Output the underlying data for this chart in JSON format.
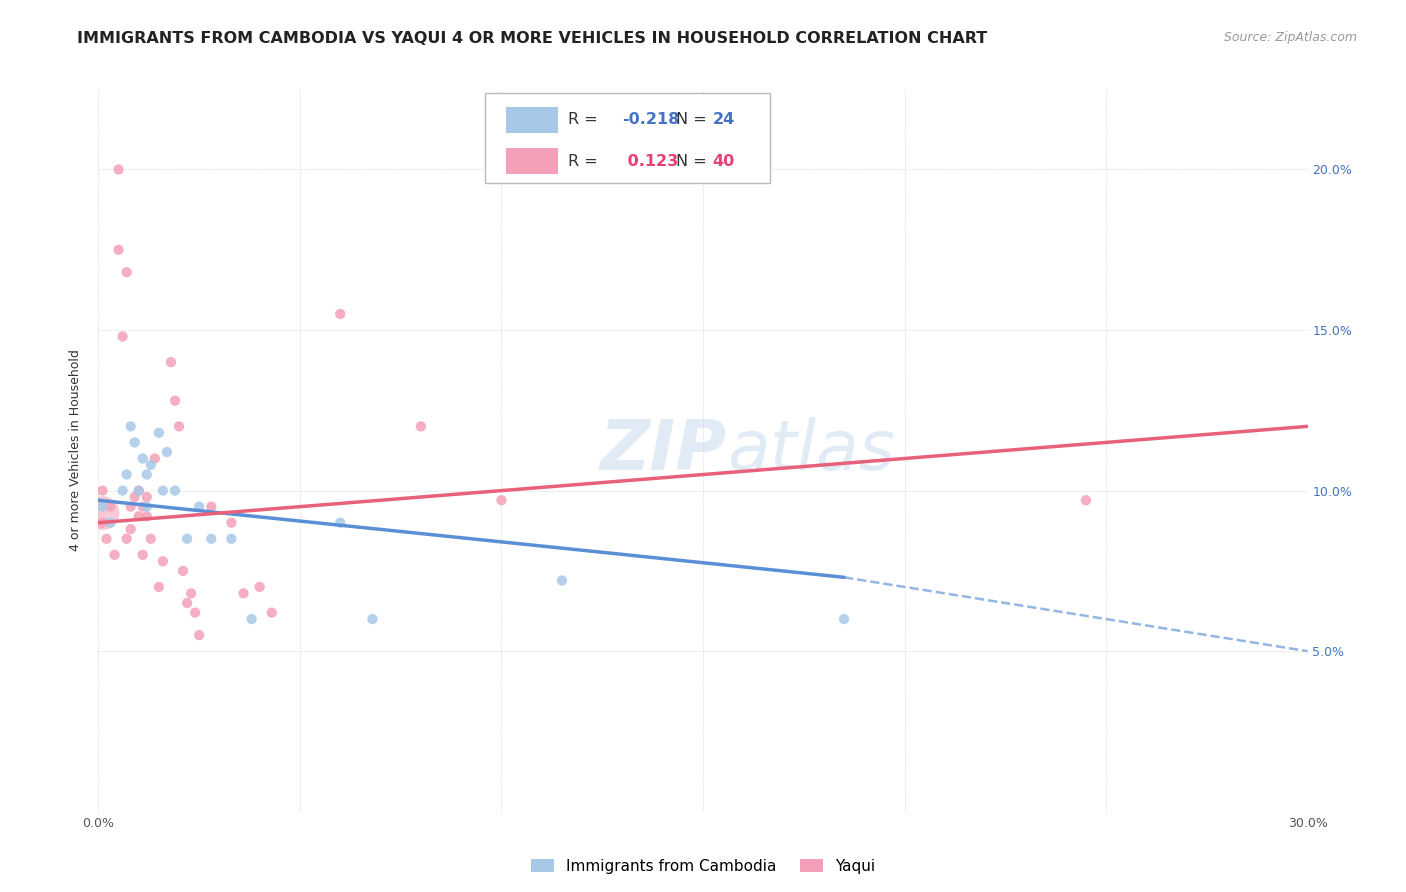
{
  "title": "IMMIGRANTS FROM CAMBODIA VS YAQUI 4 OR MORE VEHICLES IN HOUSEHOLD CORRELATION CHART",
  "source": "Source: ZipAtlas.com",
  "ylabel": "4 or more Vehicles in Household",
  "xlim": [
    0.0,
    0.3
  ],
  "ylim": [
    0.0,
    0.225
  ],
  "blue_color": "#A8C8E8",
  "pink_color": "#F4A0B8",
  "blue_line_color": "#5B8FD5",
  "pink_line_color": "#E8607A",
  "R_blue": -0.218,
  "N_blue": 24,
  "R_pink": 0.123,
  "N_pink": 40,
  "blue_scatter_x": [
    0.001,
    0.003,
    0.006,
    0.007,
    0.008,
    0.009,
    0.01,
    0.011,
    0.012,
    0.012,
    0.013,
    0.015,
    0.016,
    0.017,
    0.019,
    0.022,
    0.025,
    0.028,
    0.033,
    0.038,
    0.06,
    0.068,
    0.115,
    0.185
  ],
  "blue_scatter_y": [
    0.095,
    0.09,
    0.1,
    0.105,
    0.12,
    0.115,
    0.1,
    0.11,
    0.105,
    0.095,
    0.108,
    0.118,
    0.1,
    0.112,
    0.1,
    0.085,
    0.095,
    0.085,
    0.085,
    0.06,
    0.09,
    0.06,
    0.072,
    0.06
  ],
  "pink_scatter_x": [
    0.001,
    0.001,
    0.002,
    0.003,
    0.004,
    0.005,
    0.005,
    0.006,
    0.007,
    0.007,
    0.008,
    0.008,
    0.009,
    0.01,
    0.01,
    0.011,
    0.011,
    0.012,
    0.012,
    0.013,
    0.014,
    0.015,
    0.016,
    0.018,
    0.019,
    0.02,
    0.021,
    0.022,
    0.023,
    0.024,
    0.025,
    0.028,
    0.033,
    0.036,
    0.04,
    0.043,
    0.06,
    0.08,
    0.1,
    0.245
  ],
  "pink_scatter_y": [
    0.1,
    0.09,
    0.085,
    0.095,
    0.08,
    0.2,
    0.175,
    0.148,
    0.168,
    0.085,
    0.088,
    0.095,
    0.098,
    0.092,
    0.1,
    0.095,
    0.08,
    0.092,
    0.098,
    0.085,
    0.11,
    0.07,
    0.078,
    0.14,
    0.128,
    0.12,
    0.075,
    0.065,
    0.068,
    0.062,
    0.055,
    0.095,
    0.09,
    0.068,
    0.07,
    0.062,
    0.155,
    0.12,
    0.097,
    0.097
  ],
  "legend_label_blue": "Immigrants from Cambodia",
  "legend_label_pink": "Yaqui",
  "title_fontsize": 11.5,
  "source_fontsize": 9,
  "label_fontsize": 9,
  "tick_fontsize": 9,
  "watermark_fontsize": 50,
  "scatter_size": 55,
  "large_dot_size": 600
}
